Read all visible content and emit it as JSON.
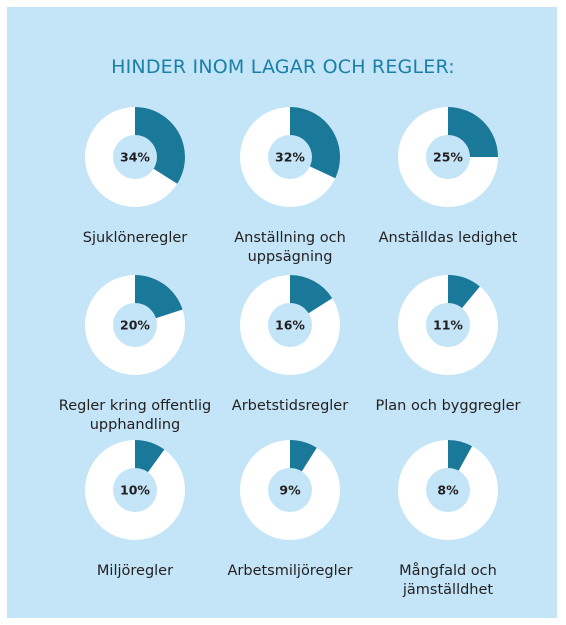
{
  "chart_data": {
    "type": "pie",
    "title": "HINDER INOM LAGAR OCH REGLER:",
    "categories": [
      "Sjuklöneregler",
      "Anställning och uppsägning",
      "Anställdas ledighet",
      "Regler kring offentlig upphandling",
      "Arbetstidsregler",
      "Plan och byggregler",
      "Miljöregler",
      "Arbetsmiljöregler",
      "Mångfald och jämställdhet"
    ],
    "values": [
      34,
      32,
      25,
      20,
      16,
      11,
      10,
      9,
      8
    ],
    "value_labels": [
      "34%",
      "32%",
      "25%",
      "20%",
      "16%",
      "11%",
      "10%",
      "9%",
      "8%"
    ],
    "color": "#1a7898"
  }
}
